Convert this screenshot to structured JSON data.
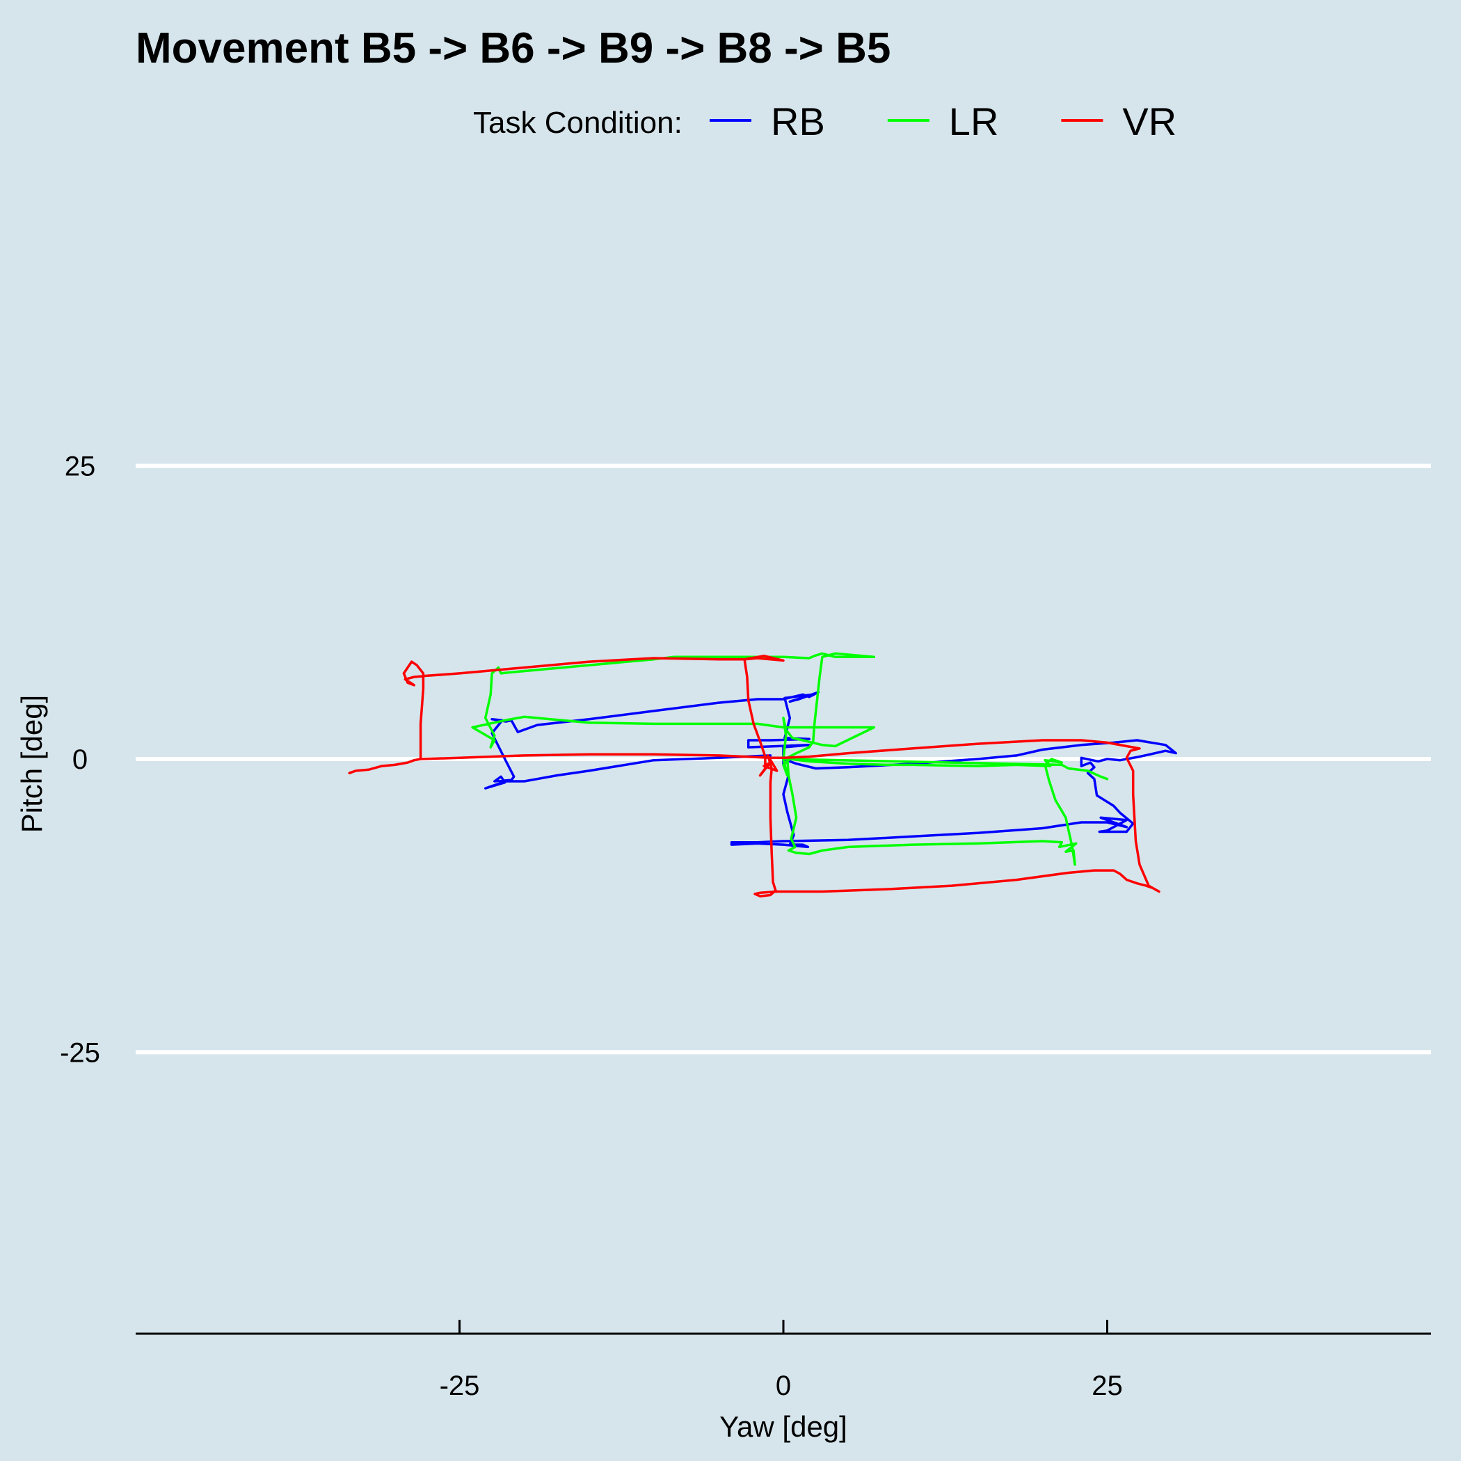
{
  "chart_data": {
    "type": "line",
    "title": "Movement B5 -> B6 -> B9 -> B8 -> B5",
    "xlabel": "Yaw [deg]",
    "ylabel": "Pitch [deg]",
    "xlim": [
      -50,
      50
    ],
    "ylim": [
      -49,
      49
    ],
    "x_ticks": [
      -25,
      0,
      25
    ],
    "y_ticks": [
      25,
      0,
      -25
    ],
    "grid": "horizontal",
    "legend": {
      "title": "Task Condition:",
      "position": "top"
    },
    "series": [
      {
        "name": "RB",
        "color": "#0000ff",
        "points": [
          [
            -1.0,
            0.3
          ],
          [
            -5.0,
            0.1
          ],
          [
            -10.0,
            -0.1
          ],
          [
            -15.0,
            -1.0
          ],
          [
            -17.5,
            -1.4
          ],
          [
            -20.0,
            -1.9
          ],
          [
            -21.4,
            -1.9
          ],
          [
            -22.5,
            -2.3
          ],
          [
            -23.0,
            -2.5
          ],
          [
            -21.5,
            -2.0
          ],
          [
            -21.8,
            -1.5
          ],
          [
            -22.3,
            -1.9
          ],
          [
            -21.0,
            -1.8
          ],
          [
            -20.8,
            -1.5
          ],
          [
            -21.5,
            0.0
          ],
          [
            -22.5,
            2.2
          ],
          [
            -21.7,
            3.3
          ],
          [
            -22.5,
            3.4
          ],
          [
            -21.4,
            3.2
          ],
          [
            -21.0,
            3.3
          ],
          [
            -20.5,
            2.3
          ],
          [
            -19.0,
            2.9
          ],
          [
            -15.0,
            3.4
          ],
          [
            -10.0,
            4.1
          ],
          [
            -5.0,
            4.8
          ],
          [
            -2.0,
            5.1
          ],
          [
            0.0,
            5.1
          ],
          [
            1.5,
            5.5
          ],
          [
            2.0,
            5.3
          ],
          [
            2.7,
            5.7
          ],
          [
            1.2,
            5.1
          ],
          [
            0.5,
            4.9
          ],
          [
            2.2,
            5.5
          ],
          [
            0.1,
            5.2
          ],
          [
            0.5,
            3.5
          ],
          [
            0.1,
            1.8
          ],
          [
            2.0,
            1.7
          ],
          [
            -1.0,
            1.6
          ],
          [
            -2.7,
            1.6
          ],
          [
            -2.7,
            1.0
          ],
          [
            2.0,
            1.2
          ],
          [
            0.0,
            1.0
          ],
          [
            0.0,
            -0.5
          ],
          [
            0.4,
            -1.4
          ],
          [
            0.0,
            -3.0
          ],
          [
            0.3,
            -4.5
          ],
          [
            0.8,
            -6.5
          ],
          [
            0.5,
            -7.3
          ],
          [
            1.5,
            -7.3
          ],
          [
            1.9,
            -7.5
          ],
          [
            0.0,
            -7.3
          ],
          [
            -2.0,
            -7.2
          ],
          [
            -4.0,
            -7.3
          ],
          [
            -4.0,
            -7.1
          ],
          [
            -2.0,
            -7.1
          ],
          [
            0.0,
            -7.0
          ],
          [
            5.0,
            -6.9
          ],
          [
            10.0,
            -6.6
          ],
          [
            15.0,
            -6.3
          ],
          [
            20.0,
            -5.9
          ],
          [
            23.0,
            -5.4
          ],
          [
            25.0,
            -5.4
          ],
          [
            26.5,
            -5.8
          ],
          [
            24.5,
            -5.0
          ],
          [
            26.5,
            -5.2
          ],
          [
            25.0,
            -6.1
          ],
          [
            24.4,
            -6.2
          ],
          [
            26.5,
            -6.2
          ],
          [
            27.0,
            -5.5
          ],
          [
            26.0,
            -4.6
          ],
          [
            25.5,
            -4.0
          ],
          [
            24.2,
            -3.1
          ],
          [
            24.0,
            -1.7
          ],
          [
            23.5,
            -1.2
          ],
          [
            24.0,
            -0.7
          ],
          [
            23.7,
            -0.3
          ],
          [
            23.0,
            -0.6
          ],
          [
            23.0,
            0.1
          ],
          [
            24.3,
            -0.2
          ],
          [
            25.0,
            0.0
          ],
          [
            26.0,
            -0.1
          ],
          [
            27.5,
            0.2
          ],
          [
            28.3,
            0.4
          ],
          [
            29.5,
            0.7
          ],
          [
            30.3,
            0.5
          ],
          [
            29.5,
            1.2
          ],
          [
            27.3,
            1.6
          ],
          [
            25.5,
            1.4
          ],
          [
            23.0,
            1.2
          ],
          [
            20.0,
            0.8
          ],
          [
            18.0,
            0.3
          ],
          [
            15.0,
            0.0
          ],
          [
            10.0,
            -0.4
          ],
          [
            5.0,
            -0.7
          ],
          [
            2.5,
            -0.8
          ],
          [
            1.0,
            -0.4
          ],
          [
            0.0,
            0.0
          ]
        ]
      },
      {
        "name": "LR",
        "color": "#00ff00",
        "points": [
          [
            0.0,
            0.0
          ],
          [
            0.2,
            2.0
          ],
          [
            0.0,
            3.5
          ],
          [
            0.2,
            2.5
          ],
          [
            0.7,
            1.8
          ],
          [
            1.5,
            1.6
          ],
          [
            3.0,
            1.2
          ],
          [
            4.0,
            1.1
          ],
          [
            7.0,
            2.7
          ],
          [
            0.0,
            2.7
          ],
          [
            -2.0,
            3.0
          ],
          [
            -5.0,
            3.0
          ],
          [
            -10.0,
            3.0
          ],
          [
            -15.0,
            3.1
          ],
          [
            -18.0,
            3.4
          ],
          [
            -20.0,
            3.6
          ],
          [
            -21.5,
            3.3
          ],
          [
            -24.0,
            2.7
          ],
          [
            -22.3,
            1.6
          ],
          [
            -22.6,
            1.0
          ],
          [
            -22.3,
            2.0
          ],
          [
            -23.0,
            3.5
          ],
          [
            -22.6,
            5.5
          ],
          [
            -22.5,
            7.3
          ],
          [
            -22.0,
            7.8
          ],
          [
            -21.8,
            7.3
          ],
          [
            -21.0,
            7.4
          ],
          [
            -19.0,
            7.6
          ],
          [
            -15.0,
            8.0
          ],
          [
            -10.0,
            8.5
          ],
          [
            -8.5,
            8.7
          ],
          [
            -5.0,
            8.7
          ],
          [
            0.0,
            8.7
          ],
          [
            2.0,
            8.6
          ],
          [
            2.4,
            8.8
          ],
          [
            3.0,
            9.0
          ],
          [
            4.0,
            8.7
          ],
          [
            7.0,
            8.7
          ],
          [
            4.0,
            9.0
          ],
          [
            3.0,
            8.7
          ],
          [
            2.8,
            7.0
          ],
          [
            2.6,
            5.0
          ],
          [
            2.4,
            3.0
          ],
          [
            2.3,
            1.5
          ],
          [
            2.0,
            1.0
          ],
          [
            1.0,
            0.5
          ],
          [
            0.3,
            0.1
          ],
          [
            0.4,
            -1.4
          ],
          [
            0.7,
            -3.0
          ],
          [
            1.0,
            -5.0
          ],
          [
            0.6,
            -6.8
          ],
          [
            0.9,
            -7.5
          ],
          [
            0.4,
            -7.8
          ],
          [
            1.0,
            -8.0
          ],
          [
            2.0,
            -8.1
          ],
          [
            3.0,
            -7.8
          ],
          [
            5.0,
            -7.5
          ],
          [
            10.0,
            -7.3
          ],
          [
            15.0,
            -7.2
          ],
          [
            20.0,
            -7.0
          ],
          [
            21.5,
            -7.1
          ],
          [
            21.3,
            -7.5
          ],
          [
            22.6,
            -7.2
          ],
          [
            21.8,
            -7.9
          ],
          [
            22.4,
            -7.8
          ],
          [
            22.5,
            -9.0
          ],
          [
            22.3,
            -7.5
          ],
          [
            21.8,
            -5.0
          ],
          [
            21.0,
            -3.5
          ],
          [
            20.5,
            -1.8
          ],
          [
            20.2,
            -0.5
          ],
          [
            20.7,
            0.0
          ],
          [
            21.5,
            -0.3
          ],
          [
            20.2,
            -0.1
          ],
          [
            20.6,
            -0.6
          ],
          [
            18.0,
            -0.5
          ],
          [
            15.0,
            -0.6
          ],
          [
            10.0,
            -0.5
          ],
          [
            8.0,
            -0.5
          ],
          [
            5.0,
            -0.4
          ],
          [
            2.0,
            -0.2
          ],
          [
            0.5,
            0.0
          ],
          [
            0.0,
            -0.5
          ],
          [
            0.3,
            -1.4
          ],
          [
            0.0,
            0.0
          ],
          [
            21.5,
            -0.5
          ],
          [
            22.0,
            -0.8
          ],
          [
            23.5,
            -1.0
          ],
          [
            24.5,
            -1.5
          ],
          [
            25.0,
            -1.7
          ]
        ]
      },
      {
        "name": "VR",
        "color": "#ff0000",
        "points": [
          [
            -33.5,
            -1.2
          ],
          [
            -33.0,
            -1.0
          ],
          [
            -32.0,
            -0.9
          ],
          [
            -31.0,
            -0.6
          ],
          [
            -30.0,
            -0.5
          ],
          [
            -29.0,
            -0.3
          ],
          [
            -28.5,
            -0.1
          ],
          [
            -28.0,
            0.0
          ],
          [
            -28.0,
            3.0
          ],
          [
            -27.8,
            6.0
          ],
          [
            -27.8,
            7.3
          ],
          [
            -28.3,
            8.0
          ],
          [
            -28.7,
            8.3
          ],
          [
            -29.0,
            7.8
          ],
          [
            -29.3,
            7.3
          ],
          [
            -29.0,
            6.5
          ],
          [
            -28.5,
            6.3
          ],
          [
            -29.2,
            6.8
          ],
          [
            -28.5,
            7.0
          ],
          [
            -27.5,
            7.1
          ],
          [
            -25.0,
            7.3
          ],
          [
            -20.0,
            7.8
          ],
          [
            -15.0,
            8.3
          ],
          [
            -10.0,
            8.6
          ],
          [
            -5.0,
            8.5
          ],
          [
            -3.0,
            8.5
          ],
          [
            -2.0,
            8.6
          ],
          [
            0.0,
            8.4
          ],
          [
            -1.5,
            8.8
          ],
          [
            -3.0,
            8.5
          ],
          [
            -2.8,
            7.0
          ],
          [
            -2.7,
            5.0
          ],
          [
            -2.3,
            3.0
          ],
          [
            -1.8,
            1.5
          ],
          [
            -1.4,
            0.2
          ],
          [
            -1.4,
            -0.8
          ],
          [
            -1.8,
            -1.4
          ],
          [
            -1.0,
            -0.3
          ],
          [
            -1.5,
            -0.6
          ],
          [
            -0.5,
            -1.0
          ],
          [
            -1.2,
            0.3
          ],
          [
            -0.9,
            -0.8
          ],
          [
            -1.0,
            -2.0
          ],
          [
            -1.0,
            -5.0
          ],
          [
            -0.9,
            -8.0
          ],
          [
            -0.8,
            -10.5
          ],
          [
            -0.6,
            -11.2
          ],
          [
            -1.0,
            -11.6
          ],
          [
            -1.8,
            -11.7
          ],
          [
            -2.2,
            -11.5
          ],
          [
            -1.8,
            -11.4
          ],
          [
            -0.5,
            -11.3
          ],
          [
            3.0,
            -11.3
          ],
          [
            8.0,
            -11.1
          ],
          [
            13.0,
            -10.8
          ],
          [
            18.0,
            -10.3
          ],
          [
            22.0,
            -9.7
          ],
          [
            24.0,
            -9.5
          ],
          [
            25.5,
            -9.5
          ],
          [
            26.0,
            -9.8
          ],
          [
            26.5,
            -10.3
          ],
          [
            27.3,
            -10.6
          ],
          [
            28.0,
            -10.8
          ],
          [
            28.5,
            -11.0
          ],
          [
            29.0,
            -11.3
          ],
          [
            28.2,
            -10.8
          ],
          [
            27.5,
            -9.0
          ],
          [
            27.2,
            -7.0
          ],
          [
            27.1,
            -5.0
          ],
          [
            27.0,
            -3.0
          ],
          [
            27.0,
            -1.0
          ],
          [
            26.5,
            0.1
          ],
          [
            26.8,
            0.7
          ],
          [
            27.5,
            0.9
          ],
          [
            26.5,
            1.1
          ],
          [
            25.0,
            1.4
          ],
          [
            23.0,
            1.6
          ],
          [
            20.0,
            1.6
          ],
          [
            15.0,
            1.3
          ],
          [
            10.0,
            0.9
          ],
          [
            5.0,
            0.5
          ],
          [
            2.0,
            0.2
          ],
          [
            0.0,
            0.1
          ],
          [
            -1.0,
            0.1
          ],
          [
            -5.0,
            0.3
          ],
          [
            -10.0,
            0.4
          ],
          [
            -15.0,
            0.4
          ],
          [
            -20.0,
            0.3
          ],
          [
            -25.0,
            0.1
          ],
          [
            -28.0,
            0.0
          ]
        ]
      }
    ]
  }
}
